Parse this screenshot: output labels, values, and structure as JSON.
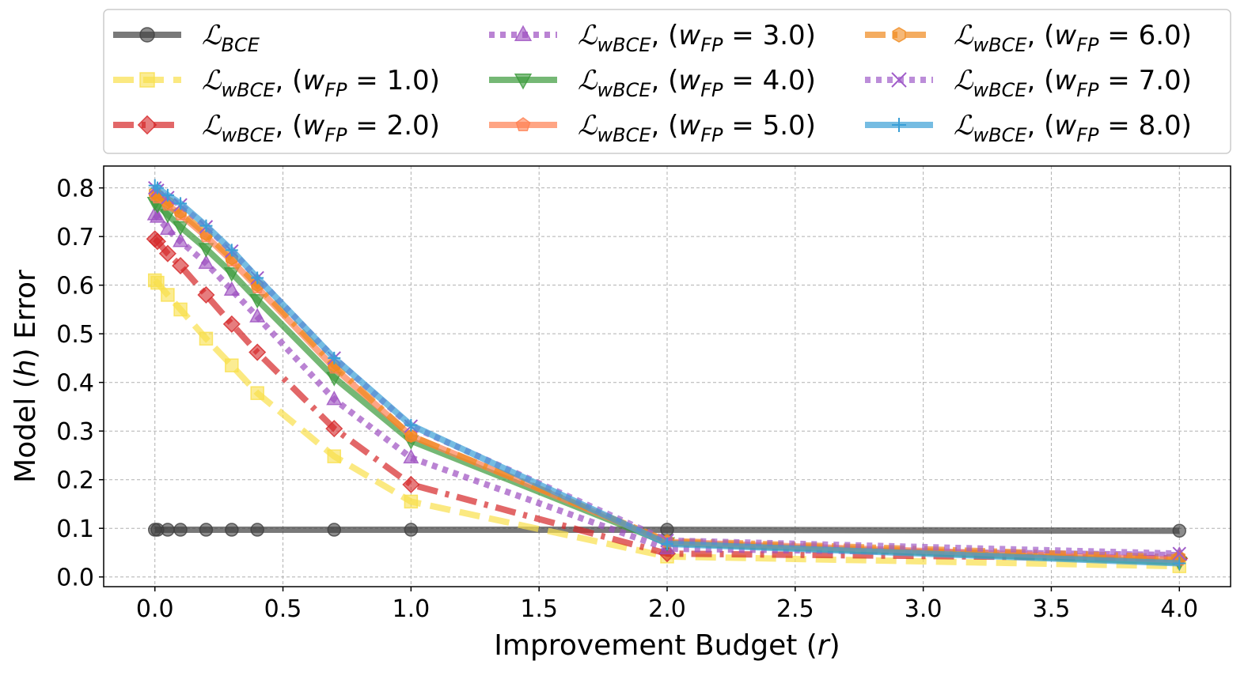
{
  "chart_data": {
    "type": "line",
    "title": "",
    "xlabel": "Improvement Budget (r)",
    "xlabel_parts": {
      "pre": "Improvement Budget (",
      "var": "r",
      "post": ")"
    },
    "ylabel": "Model (h) Error",
    "ylabel_parts": {
      "pre": "Model (",
      "var": "h",
      "post": ") Error"
    },
    "xlim": [
      -0.2,
      4.2
    ],
    "ylim": [
      -0.02,
      0.845
    ],
    "xticks": [
      0.0,
      0.5,
      1.0,
      1.5,
      2.0,
      2.5,
      3.0,
      3.5,
      4.0
    ],
    "xtick_labels": [
      "0.0",
      "0.5",
      "1.0",
      "1.5",
      "2.0",
      "2.5",
      "3.0",
      "3.5",
      "4.0"
    ],
    "yticks": [
      0.0,
      0.1,
      0.2,
      0.3,
      0.4,
      0.5,
      0.6,
      0.7,
      0.8
    ],
    "ytick_labels": [
      "0.0",
      "0.1",
      "0.2",
      "0.3",
      "0.4",
      "0.5",
      "0.6",
      "0.7",
      "0.8"
    ],
    "grid": true,
    "legend_position": "top, outside plot, 3 columns",
    "series": [
      {
        "name": "ℒBCE",
        "label_main": "ℒ",
        "label_sub": "BCE",
        "label_weight": "",
        "color": "#404040",
        "dash": "solid",
        "marker": "circle",
        "x": [
          0.0,
          0.01,
          0.05,
          0.1,
          0.2,
          0.3,
          0.4,
          0.7,
          1.0,
          2.0,
          4.0
        ],
        "y": [
          0.097,
          0.097,
          0.097,
          0.097,
          0.097,
          0.097,
          0.097,
          0.097,
          0.097,
          0.097,
          0.095
        ]
      },
      {
        "name": "ℒwBCE, (wFP = 1.0)",
        "label_main": "ℒ",
        "label_sub": "wBCE",
        "label_weight": "1.0",
        "color": "#f9e04b",
        "dash": "dashed",
        "marker": "square",
        "x": [
          0.0,
          0.01,
          0.05,
          0.1,
          0.2,
          0.3,
          0.4,
          0.7,
          1.0,
          2.0,
          4.0
        ],
        "y": [
          0.61,
          0.605,
          0.58,
          0.55,
          0.49,
          0.435,
          0.378,
          0.248,
          0.155,
          0.042,
          0.022
        ]
      },
      {
        "name": "ℒwBCE, (wFP = 2.0)",
        "label_main": "ℒ",
        "label_sub": "wBCE",
        "label_weight": "2.0",
        "color": "#d62728",
        "dash": "dashdot",
        "marker": "diamond",
        "x": [
          0.0,
          0.01,
          0.05,
          0.1,
          0.2,
          0.3,
          0.4,
          0.7,
          1.0,
          2.0,
          4.0
        ],
        "y": [
          0.695,
          0.69,
          0.665,
          0.64,
          0.58,
          0.52,
          0.462,
          0.305,
          0.19,
          0.048,
          0.038
        ]
      },
      {
        "name": "ℒwBCE, (wFP = 3.0)",
        "label_main": "ℒ",
        "label_sub": "wBCE",
        "label_weight": "3.0",
        "color": "#9c4fc0",
        "dash": "dotted",
        "marker": "triangle-up",
        "x": [
          0.0,
          0.01,
          0.05,
          0.1,
          0.2,
          0.3,
          0.4,
          0.7,
          1.0,
          2.0,
          4.0
        ],
        "y": [
          0.745,
          0.74,
          0.715,
          0.69,
          0.645,
          0.59,
          0.535,
          0.365,
          0.245,
          0.058,
          0.045
        ]
      },
      {
        "name": "ℒwBCE, (wFP = 4.0)",
        "label_main": "ℒ",
        "label_sub": "wBCE",
        "label_weight": "4.0",
        "color": "#3a9a3a",
        "dash": "solid",
        "marker": "triangle-down",
        "x": [
          0.0,
          0.01,
          0.05,
          0.1,
          0.2,
          0.3,
          0.4,
          0.7,
          1.0,
          2.0,
          4.0
        ],
        "y": [
          0.77,
          0.765,
          0.745,
          0.72,
          0.675,
          0.625,
          0.57,
          0.41,
          0.28,
          0.07,
          0.03
        ]
      },
      {
        "name": "ℒwBCE, (wFP = 5.0)",
        "label_main": "ℒ",
        "label_sub": "wBCE",
        "label_weight": "5.0",
        "color": "#ff7f50",
        "dash": "solid",
        "marker": "pentagon",
        "x": [
          0.0,
          0.01,
          0.05,
          0.1,
          0.2,
          0.3,
          0.4,
          0.7,
          1.0,
          2.0,
          4.0
        ],
        "y": [
          0.785,
          0.78,
          0.765,
          0.745,
          0.7,
          0.65,
          0.595,
          0.43,
          0.29,
          0.072,
          0.035
        ]
      },
      {
        "name": "ℒwBCE, (wFP = 6.0)",
        "label_main": "ℒ",
        "label_sub": "wBCE",
        "label_weight": "6.0",
        "color": "#f0891c",
        "dash": "dashdot",
        "marker": "hexagon",
        "x": [
          0.0,
          0.01,
          0.05,
          0.1,
          0.2,
          0.3,
          0.4,
          0.7,
          1.0,
          2.0,
          4.0
        ],
        "y": [
          0.79,
          0.785,
          0.77,
          0.75,
          0.705,
          0.655,
          0.6,
          0.435,
          0.29,
          0.074,
          0.04
        ]
      },
      {
        "name": "ℒwBCE, (wFP = 7.0)",
        "label_main": "ℒ",
        "label_sub": "wBCE",
        "label_weight": "7.0",
        "color": "#a05cc9",
        "dash": "dotted",
        "marker": "x",
        "x": [
          0.0,
          0.01,
          0.05,
          0.1,
          0.2,
          0.3,
          0.4,
          0.7,
          1.0,
          2.0,
          4.0
        ],
        "y": [
          0.8,
          0.795,
          0.78,
          0.765,
          0.72,
          0.67,
          0.615,
          0.45,
          0.31,
          0.075,
          0.048
        ]
      },
      {
        "name": "ℒwBCE, (wFP = 8.0)",
        "label_main": "ℒ",
        "label_sub": "wBCE",
        "label_weight": "8.0",
        "color": "#3a9fd6",
        "dash": "solid",
        "marker": "plus",
        "x": [
          0.0,
          0.01,
          0.05,
          0.1,
          0.2,
          0.3,
          0.4,
          0.7,
          1.0,
          2.0,
          4.0
        ],
        "y": [
          0.805,
          0.8,
          0.785,
          0.768,
          0.722,
          0.672,
          0.615,
          0.45,
          0.312,
          0.068,
          0.028
        ]
      }
    ]
  }
}
